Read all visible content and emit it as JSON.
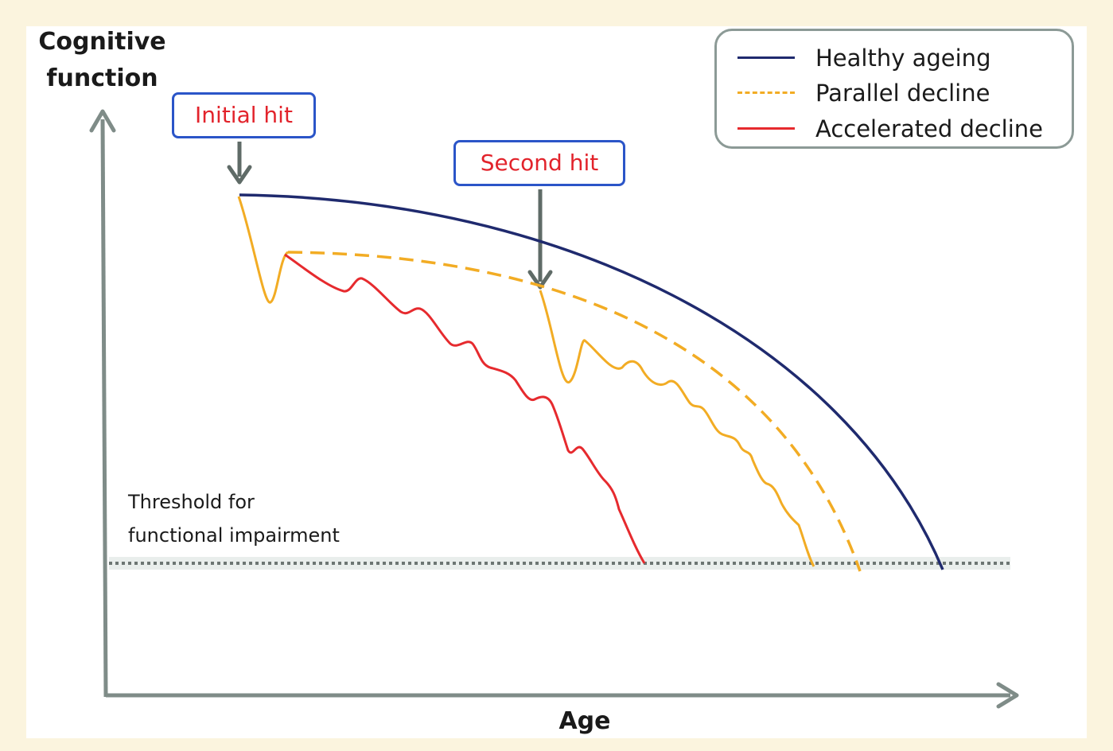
{
  "axes": {
    "y_title_line1": "Cognitive",
    "y_title_line2": "function",
    "x_title": "Age"
  },
  "annotations": {
    "initial_hit": "Initial hit",
    "second_hit": "Second hit",
    "threshold_line1": "Threshold for",
    "threshold_line2": "functional impairment"
  },
  "legend": {
    "items": [
      {
        "label": "Healthy ageing",
        "color": "#1f2a6e",
        "style": "solid"
      },
      {
        "label": "Parallel decline",
        "color": "#f2ac24",
        "style": "dashed"
      },
      {
        "label": "Accelerated decline",
        "color": "#e62a2e",
        "style": "solid"
      }
    ]
  },
  "colors": {
    "background": "#fbf4de",
    "axis": "#7f8c88",
    "arrow": "#5f6b67",
    "box_border": "#2b55c8",
    "box_text": "#e2232b",
    "threshold": "#6d7673"
  }
}
